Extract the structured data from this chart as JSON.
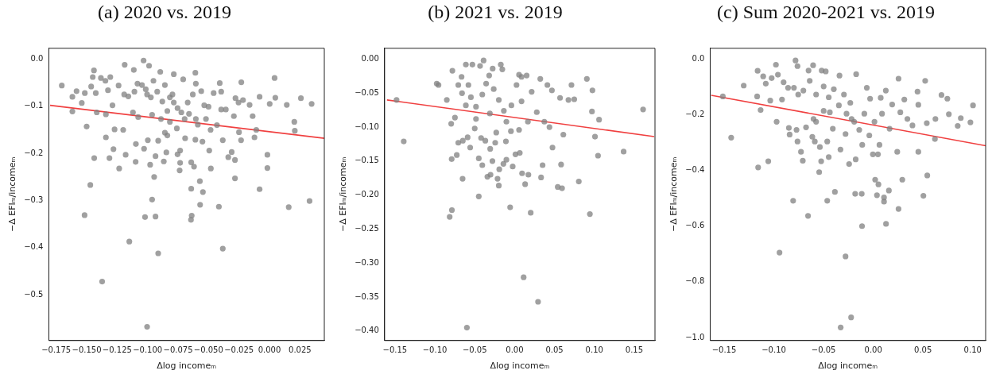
{
  "chart_data": [
    {
      "type": "scatter",
      "title": "(a) 2020 vs. 2019",
      "xlabel": "Δlog incomeₘ",
      "ylabel": "−Δ EFIₘ/incomeₘ",
      "marker": "circle",
      "xlim": [
        -0.181,
        0.045
      ],
      "ylim": [
        -0.597,
        0.023
      ],
      "xticks": [
        {
          "value": -0.175,
          "label": "−0.175"
        },
        {
          "value": -0.15,
          "label": "−0.150"
        },
        {
          "value": -0.125,
          "label": "−0.125"
        },
        {
          "value": -0.1,
          "label": "−0.100"
        },
        {
          "value": -0.075,
          "label": "−0.075"
        },
        {
          "value": -0.05,
          "label": "−0.050"
        },
        {
          "value": -0.025,
          "label": "−0.025"
        },
        {
          "value": 0,
          "label": "0.000"
        },
        {
          "value": 0.025,
          "label": "0.025"
        }
      ],
      "yticks": [
        {
          "value": 0,
          "label": "0.0"
        },
        {
          "value": -0.1,
          "label": "−0.1"
        },
        {
          "value": -0.2,
          "label": "−0.2"
        },
        {
          "value": -0.3,
          "label": "−0.3"
        },
        {
          "value": -0.4,
          "label": "−0.4"
        },
        {
          "value": -0.5,
          "label": "−0.5"
        }
      ],
      "series": [
        {
          "color": "#808080",
          "x": [
            -0.1704,
            -0.1617,
            -0.1617,
            -0.1583,
            -0.154,
            -0.1515,
            -0.15,
            -0.1517,
            -0.147,
            -0.144,
            -0.145,
            -0.1425,
            -0.1438,
            -0.1417,
            -0.1383,
            -0.1373,
            -0.1342,
            -0.1342,
            -0.1313,
            -0.1306,
            -0.128,
            -0.1288,
            -0.1271,
            -0.1233,
            -0.1238,
            -0.1188,
            -0.12,
            -0.118,
            -0.115,
            -0.1158,
            -0.1113,
            -0.112,
            -0.1096,
            -0.1098,
            -0.1077,
            -0.1083,
            -0.1033,
            -0.1029,
            -0.1021,
            -0.1004,
            -0.0998,
            -0.1004,
            -0.0988,
            -0.0979,
            -0.0963,
            -0.0946,
            -0.0935,
            -0.0935,
            -0.0913,
            -0.0913,
            -0.0952,
            -0.0896,
            -0.089,
            -0.0867,
            -0.0858,
            -0.0846,
            -0.0838,
            -0.0817,
            -0.0785,
            -0.0785,
            -0.076,
            -0.0754,
            -0.0737,
            -0.0733,
            -0.0733,
            -0.0708,
            -0.0696,
            -0.0692,
            -0.0671,
            -0.0644,
            -0.0642,
            -0.0638,
            -0.0642,
            -0.0619,
            -0.0608,
            -0.0608,
            -0.0604,
            -0.0604,
            -0.0571,
            -0.0569,
            -0.056,
            -0.0546,
            -0.055,
            -0.0535,
            -0.0521,
            -0.05,
            -0.0494,
            -0.0481,
            -0.0483,
            -0.0458,
            -0.0431,
            -0.0415,
            -0.0408,
            -0.0396,
            -0.0396,
            -0.0383,
            -0.0383,
            -0.0358,
            -0.0338,
            -0.031,
            -0.0292,
            -0.0283,
            -0.0283,
            -0.0279,
            -0.0254,
            -0.025,
            -0.0231,
            -0.0233,
            -0.0217,
            -0.0163,
            -0.0138,
            -0.0123,
            -0.0108,
            -0.0081,
            -0.0081,
            -0.0017,
            -0.0017,
            0.0002,
            0.0042,
            0.0048,
            0.0142,
            0.0158,
            0.0204,
            0.0208,
            0.0258,
            0.0329,
            0.0346,
            -0.1046,
            -0.1015,
            -0.0973,
            -0.0921,
            -0.0879,
            -0.0838,
            -0.0796,
            -0.0754,
            -0.0723,
            -0.066,
            -0.0629,
            -0.0588,
            -0.0817,
            -0.0858,
            -0.0963,
            -0.1108,
            -0.1192,
            -0.1325,
            -0.1346,
            -0.1463
          ],
          "values": [
            -0.056,
            -0.08,
            -0.111,
            -0.068,
            -0.093,
            -0.072,
            -0.143,
            -0.331,
            -0.267,
            -0.024,
            -0.038,
            -0.072,
            -0.21,
            -0.113,
            -0.04,
            -0.472,
            -0.117,
            -0.166,
            -0.21,
            -0.038,
            -0.191,
            -0.098,
            -0.149,
            -0.232,
            -0.056,
            -0.012,
            -0.15,
            -0.203,
            -0.387,
            -0.079,
            -0.023,
            -0.113,
            -0.18,
            -0.218,
            -0.123,
            -0.052,
            -0.003,
            -0.19,
            -0.335,
            -0.568,
            -0.172,
            -0.075,
            -0.014,
            -0.224,
            -0.298,
            -0.25,
            -0.334,
            -0.206,
            -0.412,
            -0.173,
            -0.046,
            -0.027,
            -0.127,
            -0.217,
            -0.055,
            -0.198,
            -0.162,
            -0.081,
            -0.032,
            -0.092,
            -0.147,
            -0.202,
            -0.236,
            -0.22,
            -0.194,
            -0.043,
            -0.127,
            -0.168,
            -0.092,
            -0.341,
            -0.275,
            -0.332,
            -0.219,
            -0.228,
            -0.029,
            -0.171,
            -0.052,
            -0.127,
            -0.259,
            -0.309,
            -0.068,
            -0.282,
            -0.175,
            -0.098,
            -0.127,
            -0.101,
            -0.194,
            -0.232,
            -0.15,
            -0.072,
            -0.14,
            -0.313,
            -0.051,
            -0.069,
            -0.107,
            -0.402,
            -0.172,
            -0.107,
            -0.208,
            -0.197,
            -0.121,
            -0.253,
            -0.214,
            -0.083,
            -0.092,
            -0.155,
            -0.049,
            -0.172,
            -0.087,
            -0.097,
            -0.121,
            -0.166,
            -0.15,
            -0.08,
            -0.276,
            -0.203,
            -0.231,
            -0.095,
            -0.04,
            -0.082,
            -0.097,
            -0.314,
            -0.133,
            -0.152,
            -0.083,
            -0.301,
            -0.095,
            -0.055,
            -0.064,
            -0.081,
            -0.069,
            -0.09,
            -0.11,
            -0.075,
            -0.104,
            -0.113,
            -0.116,
            -0.075,
            -0.139,
            -0.133,
            -0.156,
            -0.118,
            -0.069,
            -0.075,
            -0.066,
            -0.046,
            -0.058
          ]
        },
        {
          "type": "line",
          "marker": "none",
          "color": "#f04040",
          "x": [
            -0.18,
            0.045
          ],
          "values": [
            -0.098,
            -0.168
          ]
        }
      ]
    },
    {
      "type": "scatter",
      "title": "(b) 2021 vs. 2019",
      "xlabel": "Δlog incomeₘ",
      "ylabel": "−Δ EFIₘ/incomeₘ",
      "marker": "circle",
      "xlim": [
        -0.163,
        0.176
      ],
      "ylim": [
        -0.414,
        0.016
      ],
      "xticks": [
        {
          "value": -0.15,
          "label": "−0.15"
        },
        {
          "value": -0.1,
          "label": "−0.10"
        },
        {
          "value": -0.05,
          "label": "−0.05"
        },
        {
          "value": 0,
          "label": "0.00"
        },
        {
          "value": 0.05,
          "label": "0.05"
        },
        {
          "value": 0.1,
          "label": "0.10"
        },
        {
          "value": 0.15,
          "label": "0.15"
        }
      ],
      "yticks": [
        {
          "value": 0,
          "label": "0.00"
        },
        {
          "value": -0.05,
          "label": "−0.05"
        },
        {
          "value": -0.1,
          "label": "−0.10"
        },
        {
          "value": -0.15,
          "label": "−0.15"
        },
        {
          "value": -0.2,
          "label": "−0.20"
        },
        {
          "value": -0.25,
          "label": "−0.25"
        },
        {
          "value": -0.3,
          "label": "−0.30"
        },
        {
          "value": -0.35,
          "label": "−0.35"
        },
        {
          "value": -0.4,
          "label": "−0.40"
        }
      ],
      "series": [
        {
          "color": "#808080",
          "x": [
            -0.148,
            -0.139,
            -0.0976,
            -0.0954,
            -0.085,
            -0.0814,
            -0.0786,
            -0.0789,
            -0.0795,
            -0.078,
            -0.0748,
            -0.0725,
            -0.0706,
            -0.0706,
            -0.0665,
            -0.0652,
            -0.0649,
            -0.0611,
            -0.0589,
            -0.0598,
            -0.0579,
            -0.0557,
            -0.0548,
            -0.0529,
            -0.05,
            -0.0484,
            -0.0449,
            -0.0449,
            -0.0433,
            -0.042,
            -0.0405,
            -0.0389,
            -0.0367,
            -0.0341,
            -0.0319,
            -0.0302,
            -0.0306,
            -0.0275,
            -0.0278,
            -0.0243,
            -0.0214,
            -0.0198,
            -0.0192,
            -0.0173,
            -0.0154,
            -0.014,
            -0.0109,
            -0.0103,
            -0.0056,
            -0.0046,
            -0.0024,
            0.0011,
            0.0056,
            0.0065,
            0.0087,
            0.0094,
            0.0113,
            0.0132,
            0.0151,
            0.0173,
            0.0202,
            0.0294,
            0.0322,
            0.0332,
            0.0351,
            0.0411,
            0.0468,
            0.0475,
            0.0541,
            0.057,
            0.0583,
            0.0595,
            0.0611,
            0.0675,
            0.0713,
            0.0748,
            0.0805,
            0.0906,
            0.0944,
            0.0976,
            0.097,
            0.1008,
            0.1059,
            0.1046,
            0.1367,
            0.1611,
            -0.0357,
            -0.0405,
            -0.0262,
            -0.0198,
            -0.0135,
            -0.004,
            0.0024,
            0.0087,
            0.0214,
            0.0278,
            0.0167,
            0.0056,
            -0.0103,
            -0.023,
            -0.031,
            -0.0484,
            -0.0611,
            -0.0659,
            0.0373,
            0.0437
          ],
          "values": [
            -0.06,
            -0.121,
            -0.036,
            -0.038,
            -0.06,
            -0.232,
            -0.222,
            -0.147,
            -0.095,
            -0.017,
            -0.086,
            -0.141,
            -0.038,
            -0.123,
            -0.026,
            -0.176,
            -0.12,
            -0.008,
            -0.115,
            -0.395,
            -0.038,
            -0.13,
            -0.056,
            -0.008,
            -0.102,
            -0.07,
            -0.202,
            -0.146,
            -0.01,
            -0.116,
            -0.156,
            -0.002,
            -0.12,
            -0.173,
            -0.024,
            -0.17,
            -0.132,
            -0.014,
            -0.15,
            -0.123,
            -0.176,
            -0.186,
            -0.162,
            -0.008,
            -0.015,
            -0.154,
            -0.121,
            -0.148,
            -0.218,
            -0.106,
            -0.158,
            -0.14,
            -0.023,
            -0.138,
            -0.026,
            -0.168,
            -0.321,
            -0.184,
            -0.024,
            -0.17,
            -0.226,
            -0.357,
            -0.029,
            -0.174,
            -0.156,
            -0.038,
            -0.046,
            -0.13,
            -0.188,
            -0.057,
            -0.155,
            -0.19,
            -0.111,
            -0.06,
            -0.038,
            -0.059,
            -0.18,
            -0.029,
            -0.228,
            -0.046,
            -0.077,
            -0.114,
            -0.089,
            -0.142,
            -0.136,
            -0.074,
            -0.036,
            -0.052,
            -0.044,
            -0.06,
            -0.076,
            -0.068,
            -0.038,
            -0.062,
            -0.048,
            -0.078,
            -0.092,
            -0.104,
            -0.092,
            -0.108,
            -0.08,
            -0.088,
            -0.068,
            -0.05,
            -0.092,
            -0.1
          ]
        },
        {
          "type": "line",
          "marker": "none",
          "color": "#f04040",
          "x": [
            -0.16,
            0.175
          ],
          "values": [
            -0.06,
            -0.114
          ]
        }
      ]
    },
    {
      "type": "scatter",
      "title": "(c) Sum 2020-2021 vs. 2019",
      "xlabel": "Δlog incomeₘ",
      "ylabel": "−Δ EFIₘ/incomeₘ",
      "marker": "circle",
      "xlim": [
        -0.164,
        0.113
      ],
      "ylim": [
        -1.011,
        0.039
      ],
      "xticks": [
        {
          "value": -0.15,
          "label": "−0.15"
        },
        {
          "value": -0.1,
          "label": "−0.10"
        },
        {
          "value": -0.05,
          "label": "−0.05"
        },
        {
          "value": 0,
          "label": "0.00"
        },
        {
          "value": 0.05,
          "label": "0.05"
        },
        {
          "value": 0.1,
          "label": "0.10"
        }
      ],
      "yticks": [
        {
          "value": 0,
          "label": "0.0"
        },
        {
          "value": -0.2,
          "label": "−0.2"
        },
        {
          "value": -0.4,
          "label": "−0.4"
        },
        {
          "value": -0.6,
          "label": "−0.6"
        },
        {
          "value": -0.8,
          "label": "−0.8"
        },
        {
          "value": -1,
          "label": "−1.0"
        }
      ],
      "series": [
        {
          "color": "#808080",
          "x": [
            -0.1513,
            -0.1429,
            -0.1303,
            -0.1163,
            -0.1168,
            -0.1158,
            -0.1133,
            -0.1107,
            -0.1081,
            -0.1056,
            -0.1036,
            -0.0979,
            -0.0972,
            -0.0959,
            -0.0943,
            -0.0918,
            -0.0902,
            -0.0849,
            -0.0841,
            -0.0806,
            -0.0798,
            -0.0782,
            -0.0762,
            -0.0762,
            -0.0772,
            -0.0727,
            -0.0709,
            -0.0676,
            -0.0656,
            -0.0651,
            -0.0613,
            -0.0605,
            -0.0588,
            -0.0575,
            -0.0544,
            -0.0537,
            -0.0524,
            -0.0519,
            -0.0478,
            -0.0463,
            -0.0463,
            -0.0448,
            -0.0437,
            -0.0407,
            -0.0386,
            -0.034,
            -0.0328,
            -0.033,
            -0.0279,
            -0.0279,
            -0.0243,
            -0.0223,
            -0.0218,
            -0.0182,
            -0.0177,
            -0.0172,
            -0.0116,
            -0.0113,
            -0.0111,
            -0.0065,
            -0.0032,
            -0.0004,
            0.0019,
            0.0037,
            0.0047,
            0.0052,
            0.0062,
            0.0075,
            0.0108,
            0.0108,
            0.0126,
            0.0128,
            0.0157,
            0.019,
            0.0241,
            0.0254,
            0.0254,
            0.0272,
            0.0292,
            0.0312,
            0.0343,
            0.0394,
            0.0445,
            0.0453,
            0.0453,
            0.0504,
            0.0522,
            0.0538,
            0.0543,
            0.0625,
            0.062,
            0.0686,
            0.0745,
            0.076,
            0.0849,
            0.088,
            0.0977,
            0.1003,
            -0.0703,
            -0.0639,
            -0.0575,
            -0.0499,
            -0.0448,
            -0.0397,
            -0.0346,
            -0.0295,
            -0.0269,
            -0.0231,
            -0.0192,
            -0.0141,
            -0.009,
            -0.004,
            0.0012,
            0.0088,
            0.0164,
            -0.0499,
            -0.0601,
            -0.0755,
            -0.0857,
            -0.1022
          ],
          "values": [
            -0.134,
            -0.282,
            -0.095,
            -0.042,
            -0.134,
            -0.389,
            -0.183,
            -0.062,
            -0.088,
            -0.367,
            -0.149,
            -0.02,
            -0.225,
            -0.056,
            -0.695,
            -0.145,
            -0.083,
            -0.247,
            -0.271,
            -0.509,
            -0.103,
            -0.005,
            -0.025,
            -0.296,
            -0.254,
            -0.333,
            -0.365,
            -0.245,
            -0.563,
            -0.041,
            -0.279,
            -0.022,
            -0.296,
            -0.225,
            -0.406,
            -0.316,
            -0.367,
            -0.041,
            -0.044,
            -0.509,
            -0.296,
            -0.352,
            -0.191,
            -0.25,
            -0.477,
            -0.059,
            -0.964,
            -0.325,
            -0.709,
            -0.269,
            -0.377,
            -0.928,
            -0.215,
            -0.484,
            -0.36,
            -0.054,
            -0.484,
            -0.6,
            -0.308,
            -0.103,
            -0.142,
            -0.342,
            -0.433,
            -0.489,
            -0.342,
            -0.45,
            -0.308,
            -0.139,
            -0.497,
            -0.512,
            -0.113,
            -0.592,
            -0.472,
            -0.163,
            -0.333,
            -0.538,
            -0.07,
            -0.191,
            -0.433,
            -0.145,
            -0.215,
            -0.238,
            -0.117,
            -0.164,
            -0.333,
            -0.491,
            -0.078,
            -0.23,
            -0.418,
            -0.215,
            -0.287,
            -0.129,
            -0.142,
            -0.198,
            -0.24,
            -0.212,
            -0.227,
            -0.166,
            -0.113,
            -0.078,
            -0.127,
            -0.098,
            -0.137,
            -0.108,
            -0.166,
            -0.127,
            -0.196,
            -0.157,
            -0.225,
            -0.254,
            -0.196,
            -0.274,
            -0.225,
            -0.196,
            -0.25,
            -0.186,
            -0.215,
            -0.127,
            -0.103,
            -0.068
          ]
        },
        {
          "type": "line",
          "marker": "none",
          "color": "#f04040",
          "x": [
            -0.163,
            0.113
          ],
          "values": [
            -0.13,
            -0.311
          ]
        }
      ]
    }
  ]
}
